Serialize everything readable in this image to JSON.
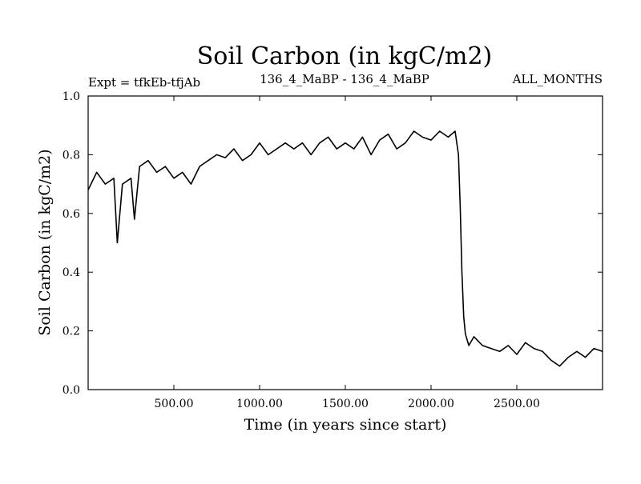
{
  "chart_data": {
    "type": "line",
    "title": "Soil Carbon (in kgC/m2)",
    "subtitle_left": "Expt = tfkEb-tfjAb",
    "subtitle_center": "136_4_MaBP - 136_4_MaBP",
    "subtitle_right": "ALL_MONTHS",
    "xlabel": "Time (in years since start)",
    "ylabel": "Soil Carbon (in kgC/m2)",
    "xlim": [
      0,
      3000
    ],
    "ylim": [
      0,
      1.0
    ],
    "x_ticks": [
      500,
      1000,
      1500,
      2000,
      2500
    ],
    "x_tick_labels": [
      "500.00",
      "1000.00",
      "1500.00",
      "2000.00",
      "2500.00"
    ],
    "y_ticks": [
      0.0,
      0.2,
      0.4,
      0.6,
      0.8,
      1.0
    ],
    "y_tick_labels": [
      "0.0",
      "0.2",
      "0.4",
      "0.6",
      "0.8",
      "1.0"
    ],
    "grid": false,
    "line_color": "#000000",
    "series": [
      {
        "x": [
          0,
          50,
          100,
          150,
          170,
          200,
          250,
          270,
          300,
          350,
          400,
          450,
          500,
          550,
          600,
          650,
          700,
          750,
          800,
          850,
          900,
          950,
          1000,
          1050,
          1100,
          1150,
          1200,
          1250,
          1300,
          1350,
          1400,
          1450,
          1500,
          1550,
          1600,
          1650,
          1700,
          1750,
          1800,
          1850,
          1900,
          1950,
          2000,
          2050,
          2100,
          2140,
          2160,
          2170,
          2180,
          2190,
          2200,
          2220,
          2250,
          2300,
          2350,
          2400,
          2450,
          2500,
          2550,
          2600,
          2650,
          2700,
          2750,
          2800,
          2850,
          2900,
          2950,
          3000
        ],
        "y": [
          0.68,
          0.74,
          0.7,
          0.72,
          0.5,
          0.7,
          0.72,
          0.58,
          0.76,
          0.78,
          0.74,
          0.76,
          0.72,
          0.74,
          0.7,
          0.76,
          0.78,
          0.8,
          0.79,
          0.82,
          0.78,
          0.8,
          0.84,
          0.8,
          0.82,
          0.84,
          0.82,
          0.84,
          0.8,
          0.84,
          0.86,
          0.82,
          0.84,
          0.82,
          0.86,
          0.8,
          0.85,
          0.87,
          0.82,
          0.84,
          0.88,
          0.86,
          0.85,
          0.88,
          0.86,
          0.88,
          0.8,
          0.62,
          0.4,
          0.25,
          0.19,
          0.15,
          0.18,
          0.15,
          0.14,
          0.13,
          0.15,
          0.12,
          0.16,
          0.14,
          0.13,
          0.1,
          0.08,
          0.11,
          0.13,
          0.11,
          0.14,
          0.13
        ]
      }
    ]
  }
}
